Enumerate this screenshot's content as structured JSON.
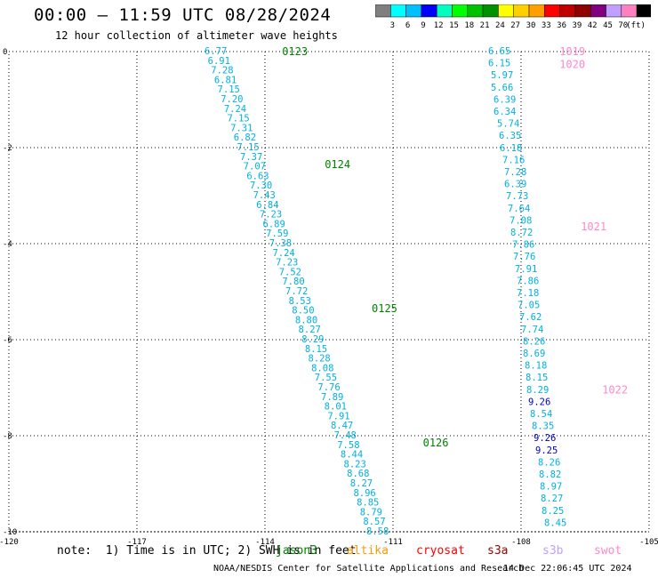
{
  "header": {
    "title": "00:00 – 11:59 UTC 08/28/2024",
    "subtitle": "12 hour collection of altimeter wave heights"
  },
  "colorbar": {
    "ticks": [
      "3",
      "6",
      "9",
      "12",
      "15",
      "18",
      "21",
      "24",
      "27",
      "30",
      "33",
      "36",
      "39",
      "42",
      "45",
      "70"
    ],
    "unit": "(ft)",
    "colors": [
      "#7f7f7f",
      "#00ffff",
      "#00bfff",
      "#0000ff",
      "#00ffbf",
      "#00ff00",
      "#00c000",
      "#009000",
      "#ffff00",
      "#ffcf00",
      "#ff9f00",
      "#ff0000",
      "#c00000",
      "#900000",
      "#800080",
      "#c0a0ff",
      "#ff80c0",
      "#000000"
    ]
  },
  "footer": {
    "note": "note:  1) Time is in UTC; 2) SWH is in feet",
    "legend": [
      {
        "name": "jason3",
        "color": "#008000"
      },
      {
        "name": "altika",
        "color": "#ff9900"
      },
      {
        "name": "cryosat",
        "color": "#ff0000"
      },
      {
        "name": "s3a",
        "color": "#990000"
      },
      {
        "name": "s3b",
        "color": "#c0a0ff"
      },
      {
        "name": "swot",
        "color": "#ff88cc"
      }
    ],
    "credit": "NOAA/NESDIS Center for Satellite Applications and Research",
    "timestamp": "14 Dec 22:06:45 UTC 2024"
  },
  "chart_data": {
    "type": "scatter",
    "title": "00:00 – 11:59 UTC 08/28/2024",
    "subtitle": "12 hour collection of altimeter wave heights",
    "xlim": [
      -120,
      -105
    ],
    "ylim": [
      -10,
      0
    ],
    "xticks": [
      -120,
      -117,
      -114,
      -111,
      -108,
      -105
    ],
    "yticks": [
      0,
      -2,
      -4,
      -6,
      -8,
      -10
    ],
    "grid": true,
    "point_colors": {
      "cyan": "#00b0e0",
      "blue": "#0000c0"
    },
    "series": [
      {
        "name": "jason3",
        "x": [
          -114.7,
          -114.63,
          -114.56,
          -114.49,
          -114.42,
          -114.35,
          -114.28,
          -114.21,
          -114.14,
          -114.07,
          -114.0,
          -113.93,
          -113.86,
          -113.79,
          -113.72,
          -113.65,
          -113.58,
          -113.51,
          -113.44,
          -113.37,
          -113.3,
          -113.23,
          -113.16,
          -113.09,
          -113.02,
          -112.95,
          -112.88,
          -112.81,
          -112.74,
          -112.67,
          -112.6,
          -112.53,
          -112.46,
          -112.39,
          -112.32,
          -112.25,
          -112.18,
          -112.11,
          -112.04,
          -111.97,
          -111.9,
          -111.83,
          -111.76,
          -111.69,
          -111.62,
          -111.55,
          -111.48,
          -111.41
        ],
        "y": [
          0.0,
          -0.25,
          -0.5,
          -0.75,
          -1.0,
          -1.25,
          -1.5,
          -1.75,
          -2.0,
          -2.25,
          -2.5,
          -2.75,
          -3.0,
          -3.25,
          -3.5,
          -3.75,
          -4.0,
          -4.25,
          -4.5,
          -4.75,
          -5.0,
          -5.25,
          -5.5,
          -5.75,
          -6.0,
          -6.25,
          -6.5,
          -6.75,
          -7.0,
          -7.25,
          -7.5,
          -7.75,
          -8.0,
          -8.25,
          -8.5,
          -8.75,
          -9.0,
          -9.25,
          -9.5,
          -9.75,
          -9.88,
          -9.9,
          -9.92,
          -9.94,
          -9.96,
          -9.97,
          -9.98,
          -9.99
        ],
        "swh": [
          "6.77",
          "6.91",
          "7.28",
          "6.81",
          "7.15",
          "7.20",
          "7.24",
          "7.15",
          "7.31",
          "6.82",
          "7.15",
          "7.37",
          "7.07",
          "6.63",
          "7.30",
          "7.43",
          "6.84",
          "7.23",
          "6.89",
          "7.59",
          "7.38",
          "7.24",
          "7.23",
          "7.52",
          "7.80",
          "7.72",
          "8.53",
          "8.50",
          "8.80",
          "8.27",
          "8.29",
          "8.15",
          "8.28",
          "8.08",
          "7.55",
          "7.76",
          "7.89",
          "8.01",
          "7.91",
          "8.47",
          "7.48",
          "7.58",
          "8.44",
          "8.23",
          "8.68",
          "8.27",
          "8.96",
          "8.85",
          "8.79",
          "8.57",
          "8.58"
        ],
        "swh_colors": [
          "cyan"
        ],
        "time_labels": [
          {
            "text": "0123",
            "x": -113.6,
            "y": 0.0
          },
          {
            "text": "0124",
            "x": -112.6,
            "y": -2.35
          },
          {
            "text": "0125",
            "x": -111.5,
            "y": -5.35
          },
          {
            "text": "0126",
            "x": -110.3,
            "y": -8.15
          }
        ]
      },
      {
        "name": "swot",
        "swh": [
          "6.65",
          "6.15",
          "5.97",
          "5.66",
          "6.39",
          "6.34",
          "5.74",
          "6.35",
          "6.18",
          "7.16",
          "7.28",
          "6.39",
          "7.73",
          "7.64",
          "7.08",
          "8.72",
          "7.86",
          "7.76",
          "7.91",
          "7.86",
          "7.18",
          "7.05",
          "7.62",
          "7.74",
          "8.26",
          "8.69",
          "8.18",
          "8.15",
          "8.29",
          "9.26",
          "8.54",
          "8.35",
          "9.26",
          "9.25",
          "8.26",
          "8.82",
          "8.97",
          "8.27",
          "8.25",
          "8.45"
        ],
        "blue_indices": [
          29,
          32,
          33
        ],
        "time_labels": [
          {
            "text": "1019",
            "x": -107.1,
            "y": 0.0
          },
          {
            "text": "1020",
            "x": -107.1,
            "y": -0.27
          },
          {
            "text": "1021",
            "x": -106.6,
            "y": -3.65
          },
          {
            "text": "1022",
            "x": -106.1,
            "y": -7.05
          }
        ]
      }
    ]
  }
}
